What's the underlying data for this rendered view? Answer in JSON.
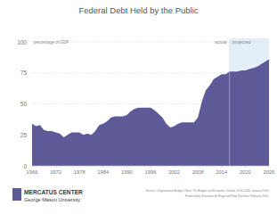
{
  "chart_data": {
    "type": "area",
    "title": "Federal Debt Held by the Public",
    "y_label": "percentage of GDP",
    "x": [
      1966,
      1967,
      1968,
      1969,
      1970,
      1971,
      1972,
      1973,
      1974,
      1975,
      1976,
      1977,
      1978,
      1979,
      1980,
      1981,
      1982,
      1983,
      1984,
      1985,
      1986,
      1987,
      1988,
      1989,
      1990,
      1991,
      1992,
      1993,
      1994,
      1995,
      1996,
      1997,
      1998,
      1999,
      2000,
      2001,
      2002,
      2003,
      2004,
      2005,
      2006,
      2007,
      2008,
      2009,
      2010,
      2011,
      2012,
      2013,
      2014,
      2015,
      2016,
      2017,
      2018,
      2019,
      2020,
      2021,
      2022,
      2023,
      2024,
      2025,
      2026
    ],
    "values": [
      34,
      32,
      33,
      29,
      28,
      28,
      27,
      26,
      23,
      25,
      27,
      27,
      27,
      25,
      26,
      25,
      28,
      33,
      34,
      36,
      39,
      40,
      40,
      40,
      41,
      44,
      46,
      47,
      47,
      47,
      47,
      45,
      42,
      39,
      34,
      31,
      32,
      34,
      35,
      35,
      35,
      35,
      39,
      52,
      61,
      65,
      70,
      72,
      74,
      74,
      76,
      76,
      76,
      77,
      77,
      78,
      79,
      80,
      82,
      84,
      86
    ],
    "color": "#5e5a97",
    "xlim": [
      1966,
      2026
    ],
    "xticks": [
      1966,
      1972,
      1978,
      1984,
      1990,
      1996,
      2002,
      2008,
      2014,
      2020,
      2026
    ],
    "ylim": [
      0,
      100
    ],
    "yticks": [
      0,
      25,
      50,
      75,
      100
    ],
    "grid": true,
    "annotations": [
      {
        "text": "actual"
      },
      {
        "text": "projected",
        "x": 2016
      }
    ],
    "logo": [
      "MERCATUS CENTER",
      "George Mason University"
    ],
    "source": [
      "Source: Congressional Budget Office, The Budget and Economic Outlook: 2016-2026, January 2016.",
      "Produced by Veronique de Rugy and Rizqi Rachmat, February 2016."
    ]
  }
}
